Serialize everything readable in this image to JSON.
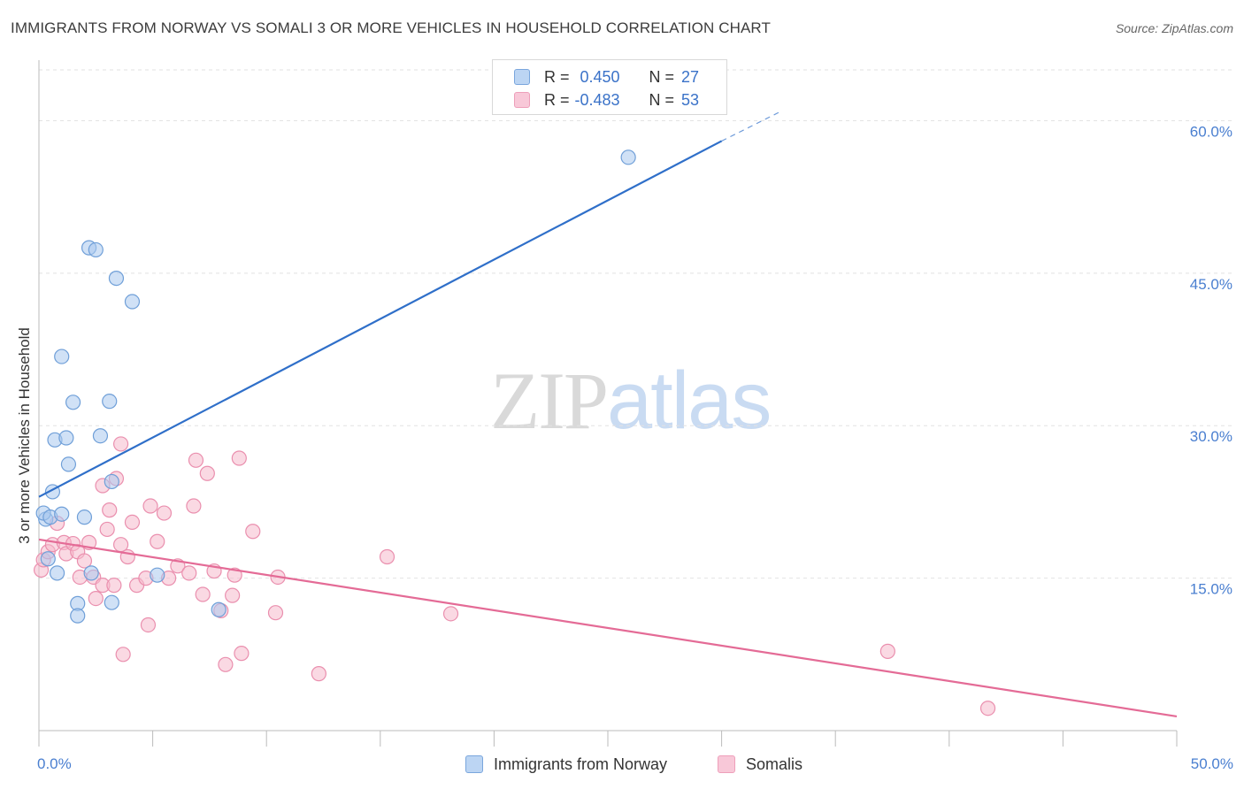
{
  "title": "IMMIGRANTS FROM NORWAY VS SOMALI 3 OR MORE VEHICLES IN HOUSEHOLD CORRELATION CHART",
  "source": "Source: ZipAtlas.com",
  "watermark": {
    "zip": "ZIP",
    "atlas": "atlas"
  },
  "legend": {
    "r_label": "R =",
    "n_label": "N =",
    "norway": {
      "r": "0.450",
      "n": "27"
    },
    "somali": {
      "r": "-0.483",
      "n": "53"
    }
  },
  "colors": {
    "norway_fill": "#a9c8ef",
    "norway_stroke": "#6f9fd8",
    "norway_line": "#2f6fc9",
    "somali_fill": "#f6b9cc",
    "somali_stroke": "#ea8fae",
    "somali_line": "#e46b96",
    "tick_blue": "#4a7fd0",
    "grid": "#e2e2e2"
  },
  "chart_data": {
    "type": "scatter",
    "title": "IMMIGRANTS FROM NORWAY VS SOMALI 3 OR MORE VEHICLES IN HOUSEHOLD CORRELATION CHART",
    "xlabel": "",
    "ylabel": "3 or more Vehicles in Household",
    "xlim": [
      0,
      50
    ],
    "ylim": [
      0,
      65
    ],
    "x_tick_labels": [
      "0.0%",
      "50.0%"
    ],
    "y_ticks": [
      15,
      30,
      45,
      60
    ],
    "y_tick_labels": [
      "15.0%",
      "30.0%",
      "45.0%",
      "60.0%"
    ],
    "grid": true,
    "legend_position": "top-center",
    "series": [
      {
        "name": "Immigrants from Norway",
        "points": [
          [
            0.4,
            16.9
          ],
          [
            0.3,
            20.8
          ],
          [
            0.2,
            21.4
          ],
          [
            0.5,
            21.0
          ],
          [
            0.8,
            15.5
          ],
          [
            1.0,
            21.3
          ],
          [
            0.6,
            23.5
          ],
          [
            1.3,
            26.2
          ],
          [
            0.7,
            28.6
          ],
          [
            1.2,
            28.8
          ],
          [
            1.5,
            32.3
          ],
          [
            1.0,
            36.8
          ],
          [
            2.0,
            21.0
          ],
          [
            1.7,
            12.5
          ],
          [
            1.7,
            11.3
          ],
          [
            2.3,
            15.5
          ],
          [
            2.7,
            29.0
          ],
          [
            3.2,
            24.5
          ],
          [
            2.2,
            47.5
          ],
          [
            2.5,
            47.3
          ],
          [
            3.4,
            44.5
          ],
          [
            4.1,
            42.2
          ],
          [
            3.2,
            12.6
          ],
          [
            5.2,
            15.3
          ],
          [
            7.9,
            11.9
          ],
          [
            3.1,
            32.4
          ],
          [
            25.9,
            56.4
          ]
        ],
        "trend": {
          "x": [
            0,
            30.0
          ],
          "y": [
            23.0,
            58.0
          ],
          "dashed_to": [
            32.5,
            60.8
          ]
        }
      },
      {
        "name": "Somalis",
        "points": [
          [
            0.1,
            15.8
          ],
          [
            0.2,
            16.8
          ],
          [
            0.4,
            17.6
          ],
          [
            0.6,
            18.3
          ],
          [
            0.8,
            20.4
          ],
          [
            1.1,
            18.5
          ],
          [
            1.2,
            17.4
          ],
          [
            1.5,
            18.4
          ],
          [
            1.7,
            17.6
          ],
          [
            1.8,
            15.1
          ],
          [
            2.0,
            16.7
          ],
          [
            2.2,
            18.5
          ],
          [
            2.4,
            15.1
          ],
          [
            2.5,
            13.0
          ],
          [
            2.8,
            14.3
          ],
          [
            2.8,
            24.1
          ],
          [
            3.0,
            19.8
          ],
          [
            3.1,
            21.7
          ],
          [
            3.4,
            24.8
          ],
          [
            3.6,
            18.3
          ],
          [
            3.9,
            17.1
          ],
          [
            4.1,
            20.5
          ],
          [
            4.3,
            14.3
          ],
          [
            4.7,
            15.0
          ],
          [
            4.9,
            22.1
          ],
          [
            5.2,
            18.6
          ],
          [
            5.5,
            21.4
          ],
          [
            5.7,
            15.0
          ],
          [
            6.1,
            16.2
          ],
          [
            6.6,
            15.5
          ],
          [
            6.9,
            26.6
          ],
          [
            6.8,
            22.1
          ],
          [
            7.4,
            25.3
          ],
          [
            7.7,
            15.7
          ],
          [
            8.0,
            11.8
          ],
          [
            8.6,
            15.3
          ],
          [
            8.8,
            26.8
          ],
          [
            9.4,
            19.6
          ],
          [
            10.4,
            11.6
          ],
          [
            10.5,
            15.1
          ],
          [
            3.7,
            7.5
          ],
          [
            4.8,
            10.4
          ],
          [
            8.2,
            6.5
          ],
          [
            8.9,
            7.6
          ],
          [
            12.3,
            5.6
          ],
          [
            7.2,
            13.4
          ],
          [
            8.5,
            13.3
          ],
          [
            3.6,
            28.2
          ],
          [
            15.3,
            17.1
          ],
          [
            18.1,
            11.5
          ],
          [
            37.3,
            7.8
          ],
          [
            41.7,
            2.2
          ],
          [
            3.3,
            14.3
          ]
        ],
        "trend": {
          "x": [
            0,
            50
          ],
          "y": [
            18.8,
            1.4
          ]
        }
      }
    ]
  }
}
